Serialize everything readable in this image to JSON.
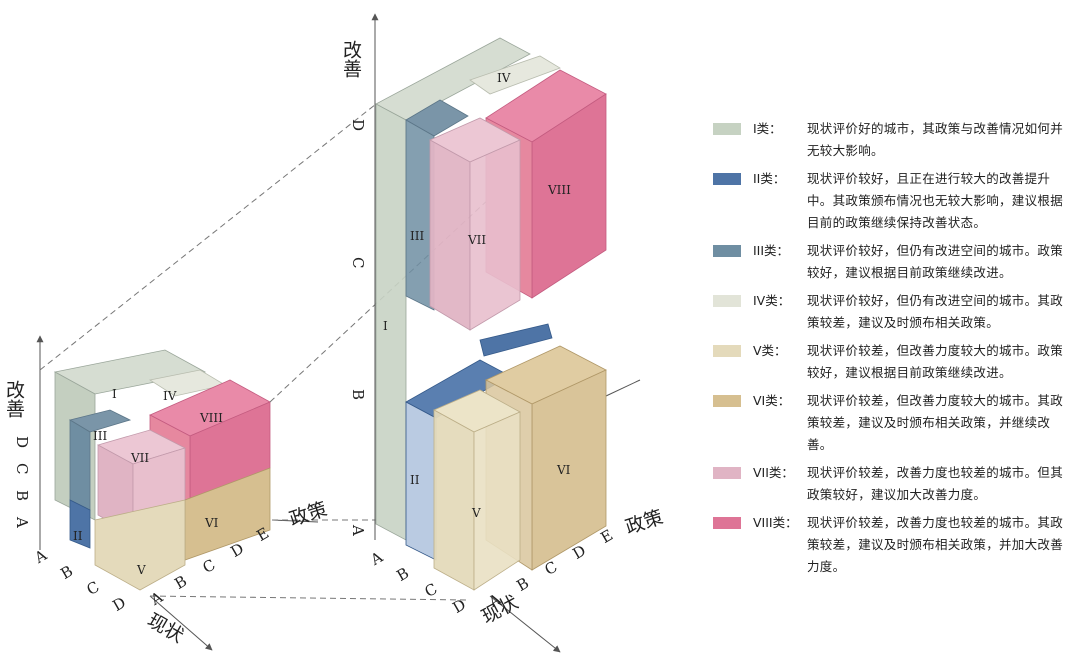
{
  "axes": {
    "improvement": "改善",
    "policy": "政策",
    "status": "现状"
  },
  "letters": {
    "a": "A",
    "b": "B",
    "c": "C",
    "d": "D",
    "e": "E"
  },
  "regions": {
    "r1": "I",
    "r2": "II",
    "r3": "III",
    "r4": "IV",
    "r5": "V",
    "r6": "VI",
    "r7": "VII",
    "r8": "VIII"
  },
  "legend": [
    {
      "label": "I类：",
      "color": "#c6d2c2",
      "text": "现状评价好的城市，其政策与改善情况如何并无较大影响。"
    },
    {
      "label": "II类：",
      "color": "#4e74a6",
      "text": "现状评价较好，且正在进行较大的改善提升中。其政策颁布情况也无较大影响，建议根据目前的政策继续保持改善状态。"
    },
    {
      "label": "III类：",
      "color": "#6f8ea2",
      "text": "现状评价较好，但仍有改进空间的城市。政策较好，建议根据目前政策继续改进。"
    },
    {
      "label": "IV类：",
      "color": "#e2e4d8",
      "text": "现状评价较好，但仍有改进空间的城市。其政策较差，建议及时颁布相关政策。"
    },
    {
      "label": "V类：",
      "color": "#e4dabb",
      "text": "现状评价较差，但改善力度较大的城市。政策较好，建议根据目前政策继续改进。"
    },
    {
      "label": "VI类：",
      "color": "#d6bf90",
      "text": "现状评价较差，但改善力度较大的城市。其政策较差，建议及时颁布相关政策，并继续改善。"
    },
    {
      "label": "VII类：",
      "color": "#e0b4c4",
      "text": "现状评价较差，改善力度也较差的城市。但其政策较好，建议加大改善力度。"
    },
    {
      "label": "VIII类：",
      "color": "#de7496",
      "text": "现状评价较差，改善力度也较差的城市。其政策较差，建议及时颁布相关政策，并加大改善力度。"
    }
  ]
}
